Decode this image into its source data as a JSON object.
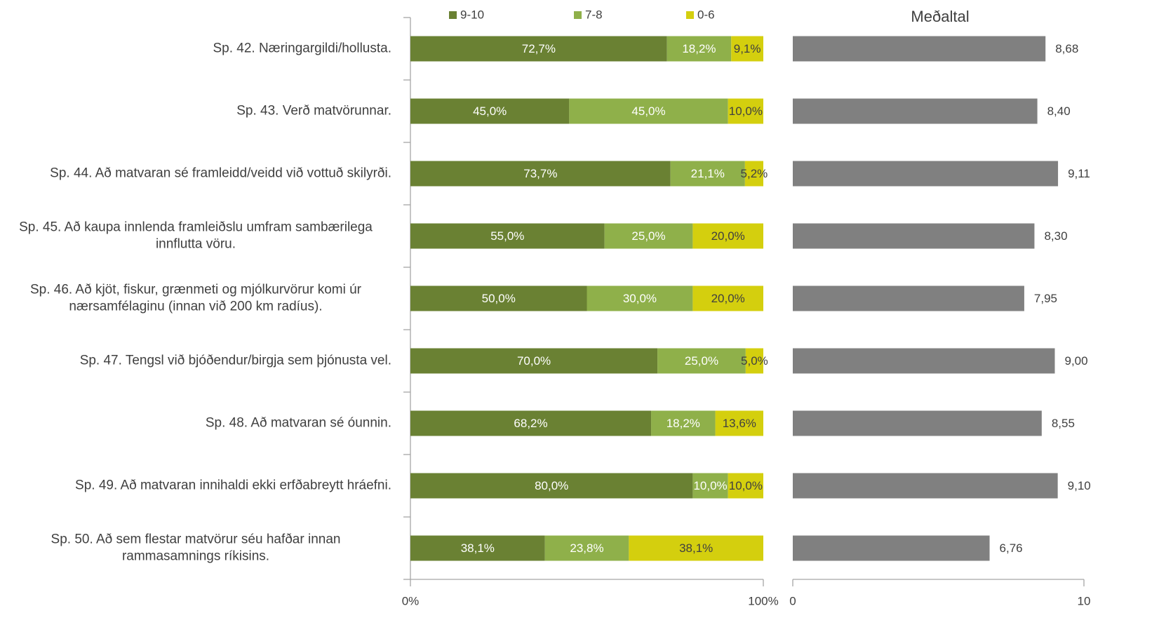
{
  "chart_data": [
    {
      "type": "stacked_barh",
      "categories": [
        "Sp. 42. Næringargildi/hollusta.",
        "Sp. 43. Verð matvörunnar.",
        "Sp. 44. Að matvaran sé framleidd/veidd við vottuð skilyrði.",
        "Sp. 45. Að kaupa innlenda framleiðslu umfram sambærilega innflutta vöru.",
        "Sp. 46. Að kjöt, fiskur, grænmeti og mjólkurvörur komi úr nærsamfélaginu (innan við 200 km radíus).",
        "Sp. 47. Tengsl við bjóðendur/birgja sem þjónusta vel.",
        "Sp. 48. Að matvaran sé óunnin.",
        "Sp. 49. Að matvaran innihaldi ekki erfðabreytt hráefni.",
        "Sp. 50. Að sem flestar matvörur séu hafðar innan rammasamnings ríkisins."
      ],
      "series": [
        {
          "name": "9-10",
          "color": "#6a8133",
          "values": [
            72.7,
            45.0,
            73.7,
            55.0,
            50.0,
            70.0,
            68.2,
            80.0,
            38.1
          ],
          "value_labels": [
            "72,7%",
            "45,0%",
            "73,7%",
            "55,0%",
            "50,0%",
            "70,0%",
            "68,2%",
            "80,0%",
            "38,1%"
          ]
        },
        {
          "name": "7-8",
          "color": "#8fb04a",
          "values": [
            18.2,
            45.0,
            21.1,
            25.0,
            30.0,
            25.0,
            18.2,
            10.0,
            23.8
          ],
          "value_labels": [
            "18,2%",
            "45,0%",
            "21,1%",
            "25,0%",
            "30,0%",
            "25,0%",
            "18,2%",
            "10,0%",
            "23,8%"
          ]
        },
        {
          "name": "0-6",
          "color": "#d4cf0e",
          "values": [
            9.1,
            10.0,
            5.2,
            20.0,
            20.0,
            5.0,
            13.6,
            10.0,
            38.1
          ],
          "value_labels": [
            "9,1%",
            "10,0%",
            "5,2%",
            "20,0%",
            "20,0%",
            "5,0%",
            "13,6%",
            "10,0%",
            "38,1%"
          ]
        }
      ],
      "xlim": [
        0,
        100
      ],
      "xticks": [
        {
          "value": 0,
          "label": "0%"
        },
        {
          "value": 100,
          "label": "100%"
        }
      ]
    },
    {
      "type": "barh",
      "title": "Meðaltal",
      "color": "#808080",
      "values": [
        8.68,
        8.4,
        9.11,
        8.3,
        7.95,
        9.0,
        8.55,
        9.1,
        6.76
      ],
      "value_labels": [
        "8,68",
        "8,40",
        "9,11",
        "8,30",
        "7,95",
        "9,00",
        "8,55",
        "9,10",
        "6,76"
      ],
      "xlim": [
        0,
        10
      ],
      "xticks": [
        0,
        10
      ]
    }
  ]
}
